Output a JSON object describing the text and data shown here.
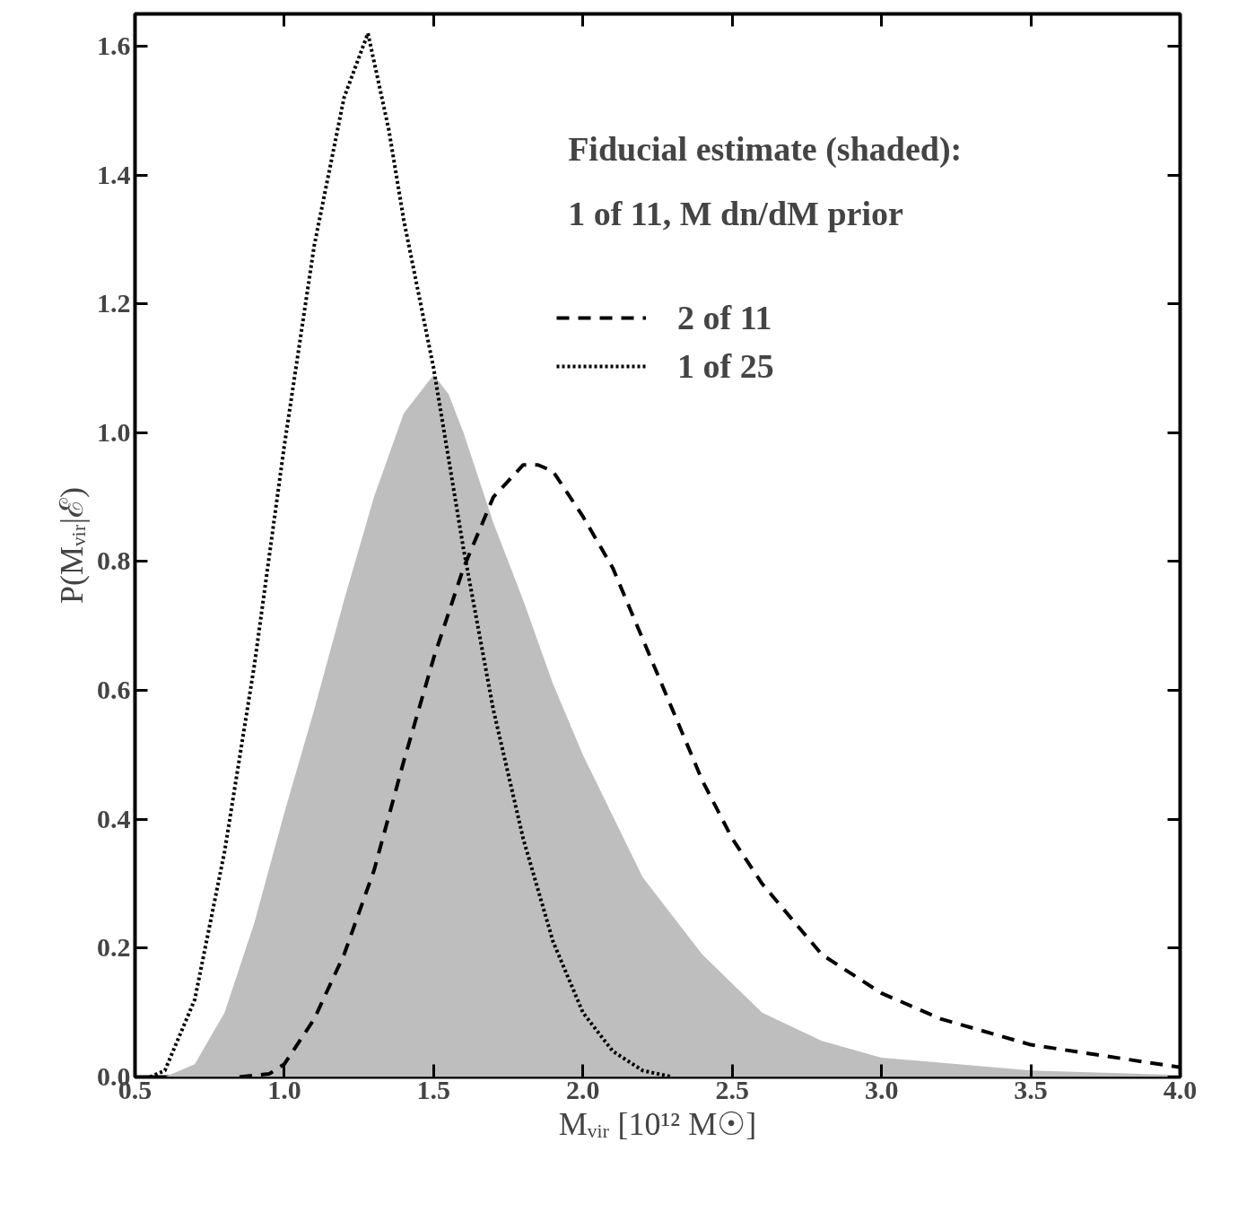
{
  "chart_data": {
    "type": "line",
    "xlabel": "Mᵥᵢᵣ [10¹² M☉]",
    "ylabel": "P(Mᵥᵢᵣ|ℰ)",
    "xlim": [
      0.5,
      4.0
    ],
    "ylim": [
      0,
      1.65
    ],
    "xticks": [
      {
        "value": 0.5,
        "label": "0.5"
      },
      {
        "value": 1.0,
        "label": "1.0"
      },
      {
        "value": 1.5,
        "label": "1.5"
      },
      {
        "value": 2.0,
        "label": "2.0"
      },
      {
        "value": 2.5,
        "label": "2.5"
      },
      {
        "value": 3.0,
        "label": "3.0"
      },
      {
        "value": 3.5,
        "label": "3.5"
      },
      {
        "value": 4.0,
        "label": "4.0"
      }
    ],
    "yticks": [
      {
        "value": 0,
        "label": "0.0"
      },
      {
        "value": 0.2,
        "label": "0.2"
      },
      {
        "value": 0.4,
        "label": "0.4"
      },
      {
        "value": 0.6,
        "label": "0.6"
      },
      {
        "value": 0.8,
        "label": "0.8"
      },
      {
        "value": 1.0,
        "label": "1.0"
      },
      {
        "value": 1.2,
        "label": "1.2"
      },
      {
        "value": 1.4,
        "label": "1.4"
      },
      {
        "value": 1.6,
        "label": "1.6"
      }
    ],
    "grid": false,
    "legend": "top right",
    "annotations": [
      "Fiducial estimate (shaded):",
      "1 of 11, M dn/dM prior"
    ],
    "series": [
      {
        "type": "area",
        "color": "#bebebe",
        "x": [
          0.6,
          0.7,
          0.8,
          0.9,
          1.0,
          1.1,
          1.2,
          1.3,
          1.4,
          1.5,
          1.55,
          1.6,
          1.7,
          1.8,
          1.9,
          2.0,
          2.2,
          2.4,
          2.6,
          2.8,
          3.0,
          3.5,
          4.0
        ],
        "values": [
          0,
          0.02,
          0.1,
          0.24,
          0.41,
          0.57,
          0.74,
          0.9,
          1.03,
          1.09,
          1.06,
          1.0,
          0.86,
          0.74,
          0.61,
          0.5,
          0.31,
          0.19,
          0.1,
          0.056,
          0.03,
          0.01,
          0.003
        ]
      },
      {
        "name": "2 of 11",
        "color": "#000000",
        "line_style": "dashed",
        "x": [
          0.85,
          0.95,
          1.0,
          1.1,
          1.2,
          1.3,
          1.4,
          1.5,
          1.6,
          1.7,
          1.8,
          1.85,
          1.9,
          2.0,
          2.1,
          2.2,
          2.3,
          2.4,
          2.5,
          2.6,
          2.8,
          3.0,
          3.2,
          3.5,
          4.0
        ],
        "values": [
          0,
          0.005,
          0.02,
          0.09,
          0.19,
          0.32,
          0.49,
          0.65,
          0.79,
          0.9,
          0.95,
          0.95,
          0.94,
          0.87,
          0.79,
          0.68,
          0.57,
          0.46,
          0.37,
          0.3,
          0.19,
          0.13,
          0.09,
          0.05,
          0.015
        ]
      },
      {
        "name": "1 of 25",
        "color": "#000000",
        "line_style": "dotted",
        "x": [
          0.55,
          0.6,
          0.7,
          0.8,
          0.9,
          1.0,
          1.1,
          1.2,
          1.28,
          1.35,
          1.4,
          1.5,
          1.6,
          1.7,
          1.8,
          1.9,
          2.0,
          2.1,
          2.2,
          2.3
        ],
        "values": [
          0,
          0.01,
          0.12,
          0.35,
          0.64,
          0.98,
          1.29,
          1.52,
          1.62,
          1.47,
          1.33,
          1.1,
          0.82,
          0.57,
          0.37,
          0.21,
          0.1,
          0.04,
          0.01,
          0
        ]
      }
    ]
  }
}
